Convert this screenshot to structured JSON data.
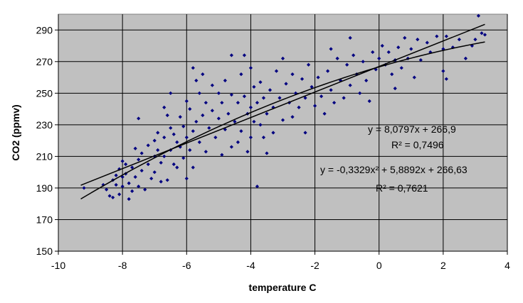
{
  "chart_data": {
    "type": "scatter",
    "title": "",
    "xlabel": "temperature C",
    "ylabel": "CO2 (ppmv)",
    "xlim": [
      -10,
      4
    ],
    "ylim": [
      150,
      300
    ],
    "x_ticks": [
      "-10",
      "-8",
      "-6",
      "-4",
      "-2",
      "0",
      "2",
      "4"
    ],
    "y_ticks": [
      "150",
      "170",
      "190",
      "210",
      "230",
      "250",
      "270",
      "290"
    ],
    "grid": true,
    "plot_background": "#c0c0c0",
    "marker_color": "#000080",
    "series": [
      {
        "type": "scatter",
        "points": [
          [
            -9.2,
            190
          ],
          [
            -8.6,
            192
          ],
          [
            -8.5,
            189
          ],
          [
            -8.4,
            185
          ],
          [
            -8.3,
            195
          ],
          [
            -8.3,
            184
          ],
          [
            -8.2,
            198
          ],
          [
            -8.2,
            192
          ],
          [
            -8.1,
            202
          ],
          [
            -8.1,
            186
          ],
          [
            -8.0,
            207
          ],
          [
            -8.0,
            197
          ],
          [
            -8.0,
            191
          ],
          [
            -7.9,
            205
          ],
          [
            -7.9,
            199
          ],
          [
            -7.8,
            193
          ],
          [
            -7.8,
            183
          ],
          [
            -7.7,
            203
          ],
          [
            -7.7,
            188
          ],
          [
            -7.6,
            215
          ],
          [
            -7.6,
            197
          ],
          [
            -7.5,
            234
          ],
          [
            -7.5,
            208
          ],
          [
            -7.5,
            191
          ],
          [
            -7.4,
            212
          ],
          [
            -7.4,
            201
          ],
          [
            -7.3,
            189
          ],
          [
            -7.2,
            217
          ],
          [
            -7.2,
            205
          ],
          [
            -7.1,
            196
          ],
          [
            -7.0,
            220
          ],
          [
            -7.0,
            210
          ],
          [
            -7.0,
            200
          ],
          [
            -6.9,
            225
          ],
          [
            -6.9,
            214
          ],
          [
            -6.8,
            194
          ],
          [
            -6.8,
            206
          ],
          [
            -6.7,
            241
          ],
          [
            -6.7,
            222
          ],
          [
            -6.7,
            210
          ],
          [
            -6.6,
            236
          ],
          [
            -6.6,
            195
          ],
          [
            -6.5,
            250
          ],
          [
            -6.5,
            228
          ],
          [
            -6.5,
            214
          ],
          [
            -6.4,
            224
          ],
          [
            -6.4,
            205
          ],
          [
            -6.3,
            219
          ],
          [
            -6.3,
            203
          ],
          [
            -6.2,
            235
          ],
          [
            -6.2,
            216
          ],
          [
            -6.1,
            229
          ],
          [
            -6.1,
            209
          ],
          [
            -6.0,
            245
          ],
          [
            -6.0,
            222
          ],
          [
            -6.0,
            196
          ],
          [
            -5.9,
            214
          ],
          [
            -5.9,
            240
          ],
          [
            -5.8,
            266
          ],
          [
            -5.8,
            226
          ],
          [
            -5.8,
            203
          ],
          [
            -5.7,
            258
          ],
          [
            -5.7,
            232
          ],
          [
            -5.6,
            250
          ],
          [
            -5.6,
            219
          ],
          [
            -5.5,
            262
          ],
          [
            -5.5,
            236
          ],
          [
            -5.4,
            244
          ],
          [
            -5.4,
            213
          ],
          [
            -5.3,
            228
          ],
          [
            -5.2,
            255
          ],
          [
            -5.2,
            239
          ],
          [
            -5.1,
            222
          ],
          [
            -5.0,
            250
          ],
          [
            -5.0,
            234
          ],
          [
            -4.9,
            211
          ],
          [
            -4.9,
            244
          ],
          [
            -4.8,
            258
          ],
          [
            -4.8,
            227
          ],
          [
            -4.7,
            237
          ],
          [
            -4.6,
            274
          ],
          [
            -4.6,
            249
          ],
          [
            -4.6,
            216
          ],
          [
            -4.5,
            232
          ],
          [
            -4.4,
            244
          ],
          [
            -4.4,
            219
          ],
          [
            -4.3,
            262
          ],
          [
            -4.3,
            226
          ],
          [
            -4.2,
            274
          ],
          [
            -4.2,
            248
          ],
          [
            -4.1,
            237
          ],
          [
            -4.1,
            213
          ],
          [
            -4.0,
            266
          ],
          [
            -4.0,
            241
          ],
          [
            -4.0,
            222
          ],
          [
            -3.9,
            254
          ],
          [
            -3.9,
            232
          ],
          [
            -3.8,
            244
          ],
          [
            -3.8,
            191
          ],
          [
            -3.7,
            257
          ],
          [
            -3.7,
            230
          ],
          [
            -3.6,
            247
          ],
          [
            -3.6,
            222
          ],
          [
            -3.5,
            237
          ],
          [
            -3.5,
            212
          ],
          [
            -3.4,
            252
          ],
          [
            -3.3,
            241
          ],
          [
            -3.3,
            225
          ],
          [
            -3.2,
            264
          ],
          [
            -3.1,
            247
          ],
          [
            -3.0,
            272
          ],
          [
            -3.0,
            233
          ],
          [
            -2.9,
            256
          ],
          [
            -2.8,
            244
          ],
          [
            -2.7,
            262
          ],
          [
            -2.7,
            235
          ],
          [
            -2.6,
            250
          ],
          [
            -2.5,
            241
          ],
          [
            -2.4,
            259
          ],
          [
            -2.3,
            247
          ],
          [
            -2.3,
            225
          ],
          [
            -2.2,
            268
          ],
          [
            -2.1,
            254
          ],
          [
            -2.0,
            242
          ],
          [
            -1.9,
            260
          ],
          [
            -1.8,
            248
          ],
          [
            -1.7,
            237
          ],
          [
            -1.6,
            264
          ],
          [
            -1.5,
            252
          ],
          [
            -1.5,
            278
          ],
          [
            -1.4,
            244
          ],
          [
            -1.3,
            272
          ],
          [
            -1.2,
            258
          ],
          [
            -1.1,
            247
          ],
          [
            -1.0,
            268
          ],
          [
            -0.9,
            285
          ],
          [
            -0.9,
            255
          ],
          [
            -0.8,
            274
          ],
          [
            -0.7,
            262
          ],
          [
            -0.6,
            250
          ],
          [
            -0.5,
            270
          ],
          [
            -0.4,
            258
          ],
          [
            -0.3,
            245
          ],
          [
            -0.2,
            276
          ],
          [
            -0.1,
            265
          ],
          [
            0.0,
            272
          ],
          [
            0.1,
            280
          ],
          [
            0.2,
            268
          ],
          [
            0.3,
            276
          ],
          [
            0.4,
            262
          ],
          [
            0.5,
            271
          ],
          [
            0.5,
            253
          ],
          [
            0.6,
            279
          ],
          [
            0.7,
            266
          ],
          [
            0.8,
            285
          ],
          [
            0.9,
            272
          ],
          [
            1.0,
            278
          ],
          [
            1.1,
            260
          ],
          [
            1.2,
            284
          ],
          [
            1.3,
            271
          ],
          [
            1.5,
            282
          ],
          [
            1.6,
            276
          ],
          [
            1.8,
            286
          ],
          [
            2.0,
            264
          ],
          [
            2.0,
            278
          ],
          [
            2.1,
            286
          ],
          [
            2.1,
            259
          ],
          [
            2.3,
            279
          ],
          [
            2.5,
            284
          ],
          [
            2.7,
            272
          ],
          [
            2.9,
            280
          ],
          [
            3.0,
            284
          ],
          [
            3.1,
            299
          ],
          [
            3.2,
            288
          ],
          [
            3.3,
            287
          ]
        ]
      },
      {
        "type": "linear-trendline",
        "equation": "y = 8,0797x + 266,9",
        "r2": "R² = 0,7496",
        "slope": 8.0797,
        "intercept": 266.9,
        "x_range": [
          -9.3,
          3.3
        ]
      },
      {
        "type": "polynomial-trendline",
        "equation": "y = -0,3329x² + 5,8892x + 266,63",
        "r2": "R² = 0,7621",
        "a": -0.3329,
        "b": 5.8892,
        "c": 266.63,
        "x_range": [
          -9.3,
          3.3
        ]
      }
    ]
  }
}
